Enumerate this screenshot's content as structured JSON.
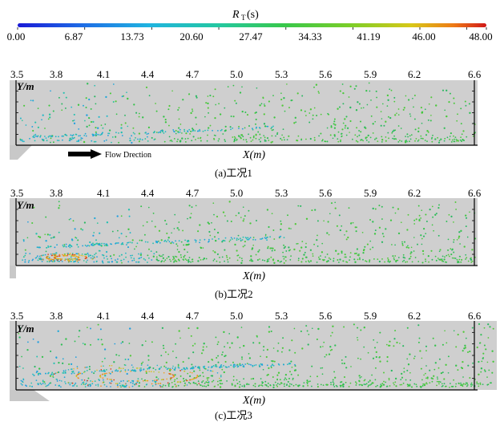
{
  "colorbar": {
    "title_main": "R",
    "title_sub": "T",
    "title_unit": "(s)",
    "ticks": [
      "0.00",
      "6.87",
      "13.73",
      "20.60",
      "27.47",
      "34.33",
      "41.19",
      "46.00",
      "48.00"
    ],
    "range": [
      0,
      48
    ],
    "colors": [
      "#1a1ad6",
      "#1e6ee6",
      "#20b4e0",
      "#24c8a0",
      "#38c84a",
      "#7cce28",
      "#d8c818",
      "#ee7a16",
      "#d01818"
    ]
  },
  "chart_data": [
    {
      "type": "scatter",
      "caption": "(a)工况1",
      "xlabel": "X(m)",
      "ylabel": "Y/m",
      "xticks": [
        "3.5",
        "3.8",
        "4.1",
        "4.4",
        "4.7",
        "5.0",
        "5.3",
        "5.6",
        "5.9",
        "6.2",
        "6.6"
      ],
      "xlim": [
        3.5,
        6.6
      ],
      "annotation": "Flow Drection",
      "dominant_residence_time_s": [
        20.6,
        34.33
      ],
      "recirculation_zone": false
    },
    {
      "type": "scatter",
      "caption": "(b)工况2",
      "xlabel": "X(m)",
      "ylabel": "Y/m",
      "xticks": [
        "3.5",
        "3.8",
        "4.1",
        "4.4",
        "4.7",
        "5.0",
        "5.3",
        "5.6",
        "5.9",
        "6.2",
        "6.6"
      ],
      "xlim": [
        3.5,
        6.6
      ],
      "dominant_residence_time_s": [
        20.6,
        34.33
      ],
      "recirculation_zone": true
    },
    {
      "type": "scatter",
      "caption": "(c)工况3",
      "xlabel": "X(m)",
      "ylabel": "Y/m",
      "xticks": [
        "3.5",
        "3.8",
        "4.1",
        "4.4",
        "4.7",
        "5.0",
        "5.3",
        "5.6",
        "5.9",
        "6.2",
        "6.6"
      ],
      "xlim": [
        3.5,
        6.6
      ],
      "dominant_residence_time_s": [
        20.6,
        34.33
      ],
      "recirculation_zone": true
    }
  ]
}
